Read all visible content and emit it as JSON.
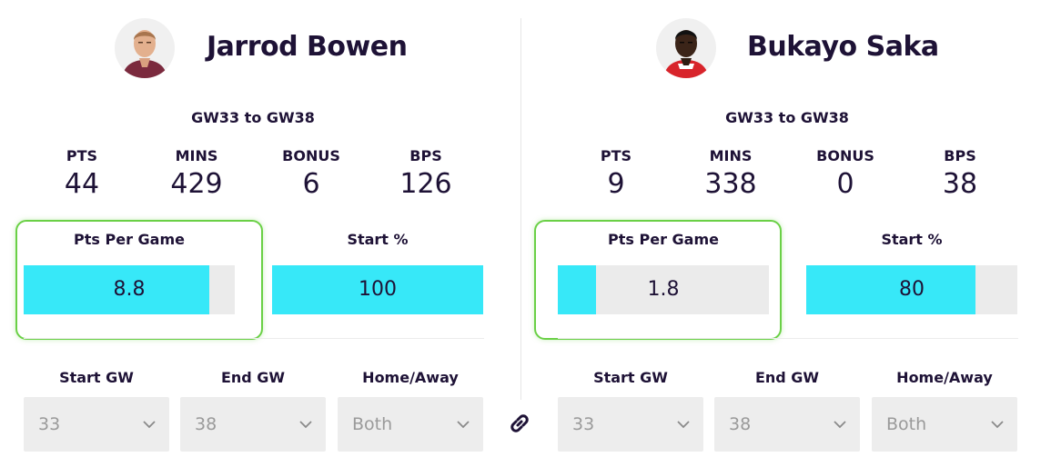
{
  "players": [
    {
      "name": "Jarrod Bowen",
      "range": "GW33 to GW38",
      "stats": [
        {
          "label": "PTS",
          "value": "44"
        },
        {
          "label": "MINS",
          "value": "429"
        },
        {
          "label": "BONUS",
          "value": "6"
        },
        {
          "label": "BPS",
          "value": "126"
        }
      ],
      "pts_per_game": {
        "label": "Pts Per Game",
        "value": "8.8",
        "fill_fraction": 0.88
      },
      "start_pct": {
        "label": "Start %",
        "value": "100",
        "fill_fraction": 1.0
      },
      "filters": {
        "start_gw": {
          "label": "Start GW",
          "value": "33"
        },
        "end_gw": {
          "label": "End GW",
          "value": "38"
        },
        "home_away": {
          "label": "Home/Away",
          "value": "Both"
        }
      },
      "shirt_color": "#7b2a3e",
      "skin_color": "#e3b08e"
    },
    {
      "name": "Bukayo Saka",
      "range": "GW33 to GW38",
      "stats": [
        {
          "label": "PTS",
          "value": "9"
        },
        {
          "label": "MINS",
          "value": "338"
        },
        {
          "label": "BONUS",
          "value": "0"
        },
        {
          "label": "BPS",
          "value": "38"
        }
      ],
      "pts_per_game": {
        "label": "Pts Per Game",
        "value": "1.8",
        "fill_fraction": 0.18
      },
      "start_pct": {
        "label": "Start %",
        "value": "80",
        "fill_fraction": 0.8
      },
      "filters": {
        "start_gw": {
          "label": "Start GW",
          "value": "33"
        },
        "end_gw": {
          "label": "End GW",
          "value": "38"
        },
        "home_away": {
          "label": "Home/Away",
          "value": "Both"
        }
      },
      "shirt_color": "#d8242b",
      "skin_color": "#3b2418"
    }
  ],
  "colors": {
    "bar_fill": "#37e8f8",
    "bar_track": "#ebebeb",
    "highlight": "#6ad046",
    "text": "#1e1236"
  },
  "icons": {
    "link": "link-icon",
    "dropdown": "chevron-down-icon"
  }
}
